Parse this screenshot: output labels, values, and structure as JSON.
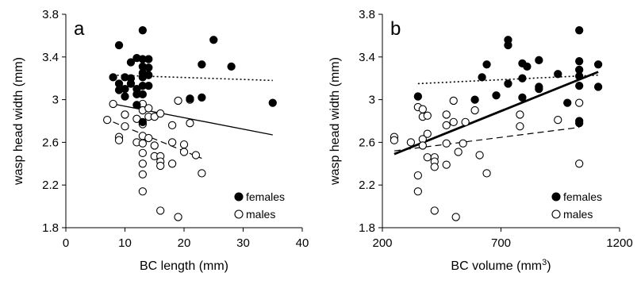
{
  "chart_data": [
    {
      "type": "scatter",
      "panel_label": "a",
      "xlabel": "BC length (mm)",
      "ylabel": "wasp head width (mm)",
      "xlim": [
        0,
        40
      ],
      "ylim": [
        1.8,
        3.8
      ],
      "xticks": [
        "0",
        "10",
        "20",
        "30",
        "40"
      ],
      "yticks": [
        "1.8",
        "2.2",
        "2.6",
        "3",
        "3.4",
        "3.8"
      ],
      "legend": {
        "placement": "bottom-right",
        "entries": [
          "females",
          "males"
        ]
      },
      "series": [
        {
          "name": "females",
          "marker": "filled-circle",
          "points": [
            [
              8,
              3.21
            ],
            [
              9,
              3.51
            ],
            [
              9,
              3.15
            ],
            [
              9,
              3.09
            ],
            [
              10,
              3.21
            ],
            [
              10,
              3.1
            ],
            [
              10,
              3.03
            ],
            [
              11,
              3.35
            ],
            [
              11,
              3.2
            ],
            [
              11,
              3.15
            ],
            [
              12,
              3.39
            ],
            [
              12,
              3.1
            ],
            [
              12,
              3.05
            ],
            [
              12,
              2.95
            ],
            [
              13,
              3.65
            ],
            [
              13,
              3.38
            ],
            [
              13,
              3.31
            ],
            [
              13,
              3.25
            ],
            [
              13,
              3.21
            ],
            [
              13,
              3.13
            ],
            [
              13,
              3.05
            ],
            [
              13,
              2.79
            ],
            [
              14,
              3.38
            ],
            [
              14,
              3.3
            ],
            [
              14,
              3.23
            ],
            [
              14,
              3.13
            ],
            [
              21,
              3.01
            ],
            [
              23,
              3.33
            ],
            [
              23,
              3.02
            ],
            [
              25,
              3.56
            ],
            [
              28,
              3.31
            ],
            [
              35,
              2.97
            ]
          ]
        },
        {
          "name": "males",
          "marker": "open-circle",
          "points": [
            [
              7,
              2.81
            ],
            [
              8,
              2.96
            ],
            [
              9,
              2.65
            ],
            [
              9,
              2.62
            ],
            [
              10,
              2.86
            ],
            [
              10,
              2.75
            ],
            [
              12,
              2.82
            ],
            [
              12,
              2.6
            ],
            [
              13,
              2.96
            ],
            [
              13,
              2.9
            ],
            [
              13,
              2.77
            ],
            [
              13,
              2.66
            ],
            [
              13,
              2.59
            ],
            [
              13,
              2.5
            ],
            [
              13,
              2.4
            ],
            [
              13,
              2.3
            ],
            [
              13,
              2.14
            ],
            [
              14,
              2.92
            ],
            [
              14,
              2.84
            ],
            [
              14,
              2.64
            ],
            [
              15,
              2.84
            ],
            [
              15,
              2.57
            ],
            [
              15,
              2.47
            ],
            [
              16,
              2.87
            ],
            [
              16,
              2.47
            ],
            [
              16,
              2.42
            ],
            [
              16,
              2.38
            ],
            [
              16,
              1.96
            ],
            [
              18,
              2.76
            ],
            [
              18,
              2.6
            ],
            [
              18,
              2.4
            ],
            [
              19,
              2.99
            ],
            [
              20,
              2.58
            ],
            [
              20,
              2.51
            ],
            [
              19,
              1.9
            ],
            [
              21,
              3.0
            ],
            [
              21,
              2.78
            ],
            [
              22,
              2.48
            ],
            [
              23,
              2.31
            ]
          ]
        }
      ],
      "trend_lines": [
        {
          "series": "females",
          "style": "dotted",
          "x": [
            8,
            35
          ],
          "y": [
            3.23,
            3.18
          ]
        },
        {
          "series": "all",
          "style": "solid",
          "x": [
            8,
            35
          ],
          "y": [
            2.96,
            2.67
          ]
        },
        {
          "series": "males",
          "style": "dashed",
          "x": [
            8,
            23
          ],
          "y": [
            2.79,
            2.45
          ]
        }
      ]
    },
    {
      "type": "scatter",
      "panel_label": "b",
      "xlabel": "BC volume (mm",
      "xlabel_sup": "3",
      "xlabel_suffix": ")",
      "ylabel": "wasp head width (mm)",
      "xlim": [
        200,
        1200
      ],
      "ylim": [
        1.8,
        3.8
      ],
      "xticks": [
        "200",
        "700",
        "1200"
      ],
      "yticks": [
        "1.8",
        "2.2",
        "2.6",
        "3",
        "3.4",
        "3.8"
      ],
      "legend": {
        "placement": "bottom-right",
        "entries": [
          "females",
          "males"
        ]
      },
      "series": [
        {
          "name": "females",
          "marker": "filled-circle",
          "points": [
            [
              350,
              3.03
            ],
            [
              590,
              3.0
            ],
            [
              620,
              3.21
            ],
            [
              640,
              3.33
            ],
            [
              680,
              3.04
            ],
            [
              730,
              3.56
            ],
            [
              730,
              3.51
            ],
            [
              730,
              3.15
            ],
            [
              790,
              3.34
            ],
            [
              790,
              3.2
            ],
            [
              790,
              3.02
            ],
            [
              810,
              3.31
            ],
            [
              860,
              3.37
            ],
            [
              860,
              3.12
            ],
            [
              860,
              3.1
            ],
            [
              940,
              3.24
            ],
            [
              980,
              2.97
            ],
            [
              1030,
              3.65
            ],
            [
              1030,
              3.36
            ],
            [
              1030,
              3.28
            ],
            [
              1030,
              3.22
            ],
            [
              1030,
              3.13
            ],
            [
              1030,
              2.8
            ],
            [
              1030,
              2.78
            ],
            [
              1110,
              3.33
            ],
            [
              1110,
              3.12
            ]
          ]
        },
        {
          "name": "males",
          "marker": "open-circle",
          "points": [
            [
              250,
              2.65
            ],
            [
              250,
              2.62
            ],
            [
              320,
              2.6
            ],
            [
              350,
              2.93
            ],
            [
              350,
              2.29
            ],
            [
              350,
              2.14
            ],
            [
              370,
              2.91
            ],
            [
              370,
              2.84
            ],
            [
              370,
              2.63
            ],
            [
              370,
              2.57
            ],
            [
              390,
              2.85
            ],
            [
              390,
              2.68
            ],
            [
              390,
              2.46
            ],
            [
              420,
              2.46
            ],
            [
              420,
              2.42
            ],
            [
              420,
              2.37
            ],
            [
              420,
              1.96
            ],
            [
              470,
              2.86
            ],
            [
              470,
              2.76
            ],
            [
              470,
              2.59
            ],
            [
              470,
              2.39
            ],
            [
              500,
              2.99
            ],
            [
              500,
              2.79
            ],
            [
              520,
              2.51
            ],
            [
              510,
              1.9
            ],
            [
              540,
              2.59
            ],
            [
              550,
              2.79
            ],
            [
              590,
              2.9
            ],
            [
              610,
              2.48
            ],
            [
              640,
              2.31
            ],
            [
              780,
              2.86
            ],
            [
              780,
              2.75
            ],
            [
              940,
              2.81
            ],
            [
              1030,
              2.97
            ],
            [
              1030,
              2.4
            ]
          ]
        }
      ],
      "trend_lines": [
        {
          "series": "females",
          "style": "dotted",
          "x": [
            350,
            1110
          ],
          "y": [
            3.15,
            3.23
          ]
        },
        {
          "series": "all",
          "style": "solid-thick",
          "x": [
            250,
            1110
          ],
          "y": [
            2.49,
            3.26
          ]
        },
        {
          "series": "males",
          "style": "dashed",
          "x": [
            250,
            1030
          ],
          "y": [
            2.52,
            2.74
          ]
        }
      ]
    }
  ]
}
